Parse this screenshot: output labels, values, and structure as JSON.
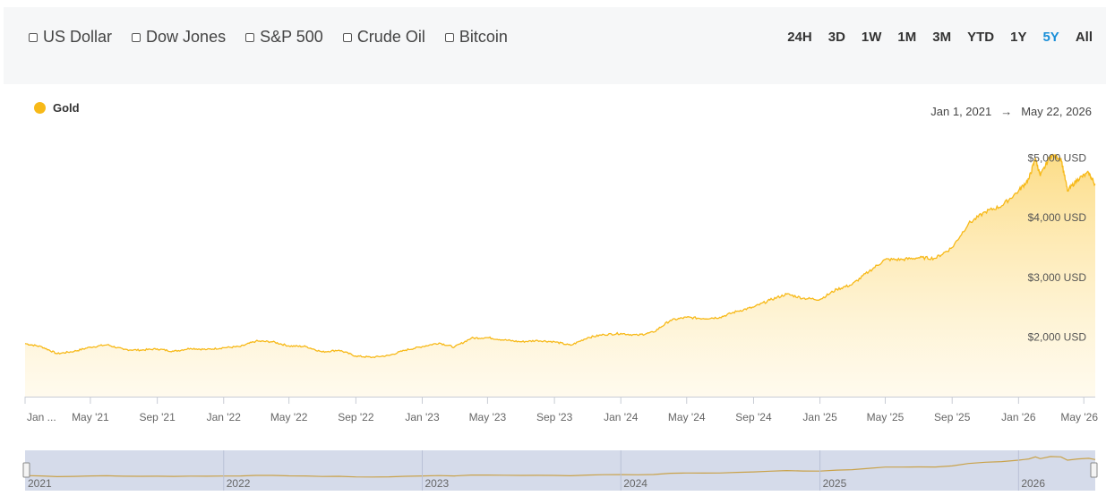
{
  "compare_options": [
    {
      "label": "US Dollar",
      "checked": false
    },
    {
      "label": "Dow Jones",
      "checked": false
    },
    {
      "label": "S&P 500",
      "checked": false
    },
    {
      "label": "Crude Oil",
      "checked": false
    },
    {
      "label": "Bitcoin",
      "checked": false
    }
  ],
  "time_ranges": [
    "24H",
    "3D",
    "1W",
    "1M",
    "3M",
    "YTD",
    "1Y",
    "5Y",
    "All"
  ],
  "active_range": "5Y",
  "date_range": {
    "start": "Jan 1, 2021",
    "arrow": "→",
    "end": "May 22, 2026"
  },
  "colors": {
    "line": "#f7b918",
    "fill_top": "#fcd97a",
    "fill_bottom": "#fff6dc",
    "active": "#1a8fd8",
    "navigator": "#d5dbea"
  },
  "chart_data": {
    "type": "area",
    "series": [
      {
        "name": "Gold",
        "points": [
          [
            "2021-01-01",
            1890
          ],
          [
            "2021-02-01",
            1835
          ],
          [
            "2021-03-01",
            1720
          ],
          [
            "2021-04-01",
            1760
          ],
          [
            "2021-05-01",
            1830
          ],
          [
            "2021-06-01",
            1870
          ],
          [
            "2021-07-01",
            1790
          ],
          [
            "2021-08-01",
            1780
          ],
          [
            "2021-09-01",
            1800
          ],
          [
            "2021-10-01",
            1760
          ],
          [
            "2021-11-01",
            1810
          ],
          [
            "2021-12-01",
            1790
          ],
          [
            "2022-01-01",
            1820
          ],
          [
            "2022-02-01",
            1840
          ],
          [
            "2022-03-01",
            1930
          ],
          [
            "2022-04-01",
            1920
          ],
          [
            "2022-05-01",
            1850
          ],
          [
            "2022-06-01",
            1840
          ],
          [
            "2022-07-01",
            1750
          ],
          [
            "2022-08-01",
            1780
          ],
          [
            "2022-09-01",
            1680
          ],
          [
            "2022-10-01",
            1660
          ],
          [
            "2022-11-01",
            1690
          ],
          [
            "2022-12-01",
            1780
          ],
          [
            "2023-01-01",
            1840
          ],
          [
            "2023-02-01",
            1900
          ],
          [
            "2023-03-01",
            1830
          ],
          [
            "2023-04-01",
            1980
          ],
          [
            "2023-05-01",
            1990
          ],
          [
            "2023-06-01",
            1950
          ],
          [
            "2023-07-01",
            1920
          ],
          [
            "2023-08-01",
            1940
          ],
          [
            "2023-09-01",
            1920
          ],
          [
            "2023-10-01",
            1860
          ],
          [
            "2023-11-01",
            1990
          ],
          [
            "2023-12-01",
            2040
          ],
          [
            "2024-01-01",
            2060
          ],
          [
            "2024-02-01",
            2030
          ],
          [
            "2024-03-01",
            2080
          ],
          [
            "2024-04-01",
            2280
          ],
          [
            "2024-05-01",
            2330
          ],
          [
            "2024-06-01",
            2310
          ],
          [
            "2024-07-01",
            2330
          ],
          [
            "2024-08-01",
            2430
          ],
          [
            "2024-09-01",
            2500
          ],
          [
            "2024-10-01",
            2620
          ],
          [
            "2024-11-01",
            2720
          ],
          [
            "2024-12-01",
            2650
          ],
          [
            "2025-01-01",
            2630
          ],
          [
            "2025-02-01",
            2800
          ],
          [
            "2025-03-01",
            2880
          ],
          [
            "2025-04-01",
            3100
          ],
          [
            "2025-05-01",
            3300
          ],
          [
            "2025-06-01",
            3300
          ],
          [
            "2025-07-01",
            3330
          ],
          [
            "2025-08-01",
            3320
          ],
          [
            "2025-09-01",
            3500
          ],
          [
            "2025-10-01",
            3900
          ],
          [
            "2025-11-01",
            4100
          ],
          [
            "2025-12-01",
            4200
          ],
          [
            "2026-01-01",
            4450
          ],
          [
            "2026-01-20",
            4650
          ],
          [
            "2026-02-01",
            5000
          ],
          [
            "2026-02-10",
            4700
          ],
          [
            "2026-03-01",
            5050
          ],
          [
            "2026-03-20",
            5000
          ],
          [
            "2026-04-01",
            4450
          ],
          [
            "2026-04-20",
            4650
          ],
          [
            "2026-05-10",
            4750
          ],
          [
            "2026-05-22",
            4550
          ]
        ]
      }
    ],
    "x_ticks": [
      "Jan ...",
      "May '21",
      "Sep '21",
      "Jan '22",
      "May '22",
      "Sep '22",
      "Jan '23",
      "May '23",
      "Sep '23",
      "Jan '24",
      "May '24",
      "Sep '24",
      "Jan '25",
      "May '25",
      "Sep '25",
      "Jan '26",
      "May '26"
    ],
    "y_ticks": [
      "$2,000 USD",
      "$3,000 USD",
      "$4,000 USD",
      "$5,000 USD"
    ],
    "y_tick_values": [
      2000,
      3000,
      4000,
      5000
    ],
    "xlim": [
      "2021-01-01",
      "2026-05-22"
    ],
    "ylim": [
      1000,
      5400
    ],
    "grid": false,
    "navigator_labels": [
      "2021",
      "2022",
      "2023",
      "2024",
      "2025",
      "2026"
    ]
  }
}
